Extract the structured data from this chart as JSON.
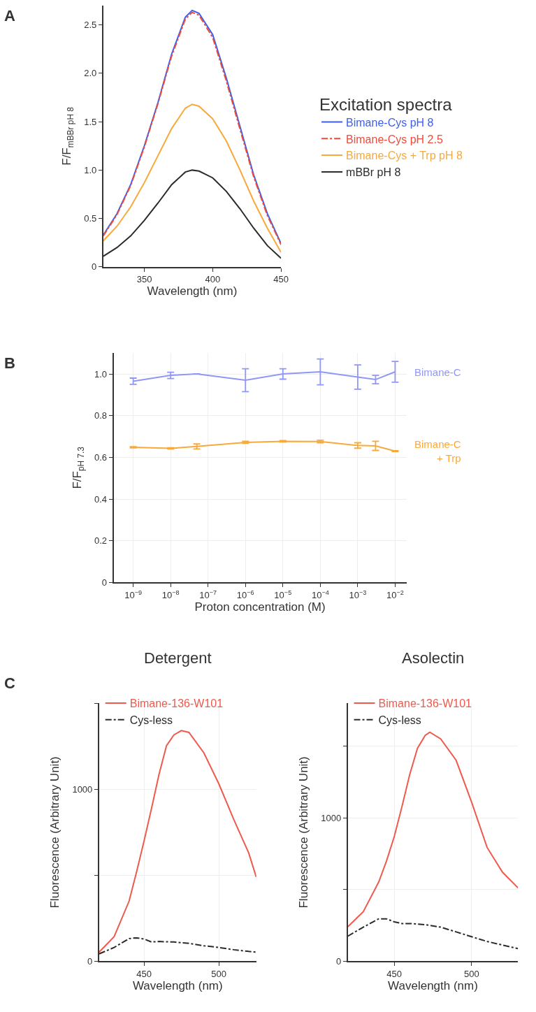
{
  "chart_data": [
    {
      "type": "line",
      "annotations": [
        "A"
      ],
      "xlabel": "Wavelength (nm)",
      "ylabel": "F/F$_{mBBr pH 8}$",
      "legend_title": "Excitation spectra",
      "legend": "right",
      "x": [
        320,
        330,
        340,
        350,
        360,
        370,
        380,
        385,
        390,
        400,
        410,
        420,
        430,
        440,
        450
      ],
      "xlim": [
        320,
        450
      ],
      "xticks": [
        350,
        400,
        450
      ],
      "ylim": [
        0,
        2.7
      ],
      "yticks": [
        0,
        0.5,
        {
          "value": 1,
          "label": "1.0"
        },
        1.5,
        {
          "value": 2,
          "label": "2.0"
        },
        2.5
      ],
      "grid": false,
      "series": [
        {
          "name": "Bimane-Cys pH 8",
          "color": "#3f5fe8",
          "line_style": "solid",
          "values": [
            0.33,
            0.55,
            0.85,
            1.25,
            1.7,
            2.2,
            2.58,
            2.65,
            2.62,
            2.4,
            1.95,
            1.45,
            0.95,
            0.55,
            0.24
          ]
        },
        {
          "name": "Bimane-Cys pH 2.5",
          "color": "#ee4b3b",
          "line_style": "dashed",
          "values": [
            0.32,
            0.54,
            0.84,
            1.24,
            1.69,
            2.18,
            2.56,
            2.63,
            2.6,
            2.37,
            1.92,
            1.42,
            0.93,
            0.53,
            0.23
          ]
        },
        {
          "name": "Bimane-Cys + Trp pH 8",
          "color": "#f8a93a",
          "line_style": "solid",
          "values": [
            0.27,
            0.42,
            0.62,
            0.87,
            1.15,
            1.43,
            1.64,
            1.68,
            1.66,
            1.53,
            1.3,
            1.0,
            0.68,
            0.4,
            0.15
          ]
        },
        {
          "name": "mBBr pH 8",
          "color": "#2b2b2b",
          "line_style": "solid",
          "values": [
            0.11,
            0.2,
            0.32,
            0.48,
            0.66,
            0.85,
            0.98,
            1.0,
            0.99,
            0.92,
            0.78,
            0.6,
            0.4,
            0.22,
            0.09
          ]
        }
      ]
    },
    {
      "type": "line",
      "annotations": [
        "B"
      ],
      "xlabel": "Proton concentration (M)",
      "ylabel": "F/F$_{pH 7.3}$",
      "legend": "right",
      "log": "x",
      "grid": true,
      "x": [
        1e-09,
        1e-08,
        5e-08,
        1e-06,
        1e-05,
        0.0001,
        0.001,
        0.003,
        0.01
      ],
      "xlim": [
        3e-10,
        0.02
      ],
      "xticks": [
        {
          "value": 1e-09,
          "label": "10$^{−9}$"
        },
        {
          "value": 1e-08,
          "label": "10$^{−8}$"
        },
        {
          "value": 1e-07,
          "label": "10$^{−7}$"
        },
        {
          "value": 1e-06,
          "label": "10$^{−6}$"
        },
        {
          "value": 1e-05,
          "label": "10$^{−5}$"
        },
        {
          "value": 0.0001,
          "label": "10$^{−4}$"
        },
        {
          "value": 0.001,
          "label": "10$^{−3}$"
        },
        {
          "value": 0.01,
          "label": "10$^{−2}$"
        }
      ],
      "ylim": [
        0,
        1.1
      ],
      "yticks": [
        0,
        0.2,
        0.4,
        0.6,
        0.8,
        {
          "value": 1,
          "label": "1.0"
        }
      ],
      "series": [
        {
          "name": "Bimane-C",
          "color": "#9097f5",
          "line_style": "solid",
          "values": [
            0.965,
            0.993,
            1.0,
            0.97,
            1.0,
            1.01,
            0.985,
            0.973,
            1.01
          ],
          "errors": [
            0.015,
            0.015,
            null,
            0.055,
            0.025,
            0.062,
            0.058,
            0.02,
            0.05
          ]
        },
        {
          "name": "Bimane-C\n+ Trp",
          "color": "#f8a93a",
          "line_style": "solid",
          "values": [
            0.648,
            0.643,
            0.652,
            0.672,
            0.677,
            0.676,
            0.657,
            0.655,
            0.63
          ],
          "errors": [
            0.003,
            0.003,
            0.012,
            0.005,
            0.003,
            0.006,
            0.013,
            0.022,
            0.002
          ]
        }
      ]
    },
    {
      "type": "line",
      "title": "Detergent",
      "annotations": [
        "C"
      ],
      "xlabel": "Wavelength (nm)",
      "ylabel": "Fluorescence (Arbitrary Unit)",
      "legend": "top left",
      "grid": true,
      "x": [
        420,
        430,
        440,
        445,
        450,
        455,
        460,
        465,
        470,
        475,
        480,
        490,
        500,
        510,
        520,
        525
      ],
      "xlim": [
        420,
        525
      ],
      "xticks": [
        450,
        500
      ],
      "ylim": [
        0,
        1500
      ],
      "yticks": [
        0,
        {
          "value": 500,
          "label": null
        },
        1000,
        {
          "value": 1500,
          "label": null
        }
      ],
      "series": [
        {
          "name": "Bimane-136-W101",
          "color": "#ee5a4e",
          "line_style": "solid",
          "values": [
            53,
            143,
            350,
            520,
            700,
            890,
            1087,
            1254,
            1317,
            1342,
            1331,
            1212,
            1032,
            824,
            629,
            490
          ]
        },
        {
          "name": "Cys-less",
          "color": "#2b2b2b",
          "line_style": "dashed",
          "values": [
            43,
            80,
            132,
            136,
            129,
            112,
            115,
            113,
            112,
            108,
            104,
            90,
            80,
            67,
            57,
            53
          ]
        }
      ]
    },
    {
      "type": "line",
      "title": "Asolectin",
      "xlabel": "Wavelength (nm)",
      "ylabel": "Fluorescence (Arbitrary Unit)",
      "legend": "top left",
      "grid": true,
      "x": [
        420,
        430,
        440,
        445,
        450,
        455,
        460,
        465,
        470,
        473,
        480,
        490,
        500,
        510,
        520,
        530
      ],
      "xlim": [
        420,
        530
      ],
      "xticks": [
        450,
        500
      ],
      "ylim": [
        0,
        1800
      ],
      "yticks": [
        0,
        {
          "value": 500,
          "label": null
        },
        1000,
        {
          "value": 1500,
          "label": null
        }
      ],
      "series": [
        {
          "name": "Bimane-136-W101",
          "color": "#ee5a4e",
          "line_style": "solid",
          "values": [
            241,
            346,
            554,
            700,
            870,
            1080,
            1303,
            1486,
            1577,
            1599,
            1552,
            1403,
            1111,
            795,
            621,
            512
          ]
        },
        {
          "name": "Cys-less",
          "color": "#2b2b2b",
          "line_style": "dashed",
          "values": [
            175,
            238,
            296,
            296,
            275,
            263,
            263,
            260,
            255,
            250,
            238,
            205,
            171,
            138,
            113,
            88
          ]
        }
      ]
    }
  ]
}
